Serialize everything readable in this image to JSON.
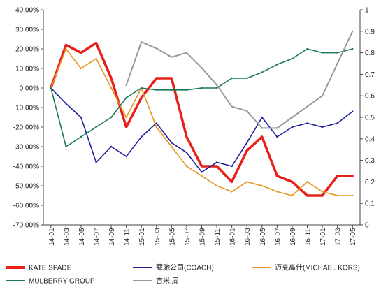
{
  "chart_data": {
    "type": "line",
    "x": [
      "14-01",
      "14-03",
      "14-05",
      "14-07",
      "14-09",
      "14-11",
      "15-01",
      "15-03",
      "15-05",
      "15-07",
      "15-09",
      "15-11",
      "16-01",
      "16-03",
      "16-05",
      "16-07",
      "16-09",
      "16-11",
      "17-01",
      "17-03",
      "17-05"
    ],
    "y_left_ticks": [
      "40.00%",
      "30.00%",
      "20.00%",
      "10.00%",
      "0.00%",
      "-10.00%",
      "-20.00%",
      "-30.00%",
      "-40.00%",
      "-50.00%",
      "-60.00%",
      "-70.00%"
    ],
    "y_right_ticks": [
      "1",
      "0.9",
      "0.8",
      "0.7",
      "0.6",
      "0.5",
      "0.4",
      "0.3",
      "0.2",
      "0.1",
      "0"
    ],
    "ylim_left": [
      -70,
      40
    ],
    "ylim_right": [
      0,
      1
    ],
    "grid": false,
    "legend_position": "bottom",
    "series": [
      {
        "name": "KATE SPADE",
        "axis": "left",
        "color": "#e8201a",
        "values": [
          0,
          22,
          18,
          23,
          5,
          -20,
          -5,
          5,
          5,
          -25,
          -40,
          -40,
          -48,
          -32,
          -25,
          -45,
          -48,
          -55,
          -55,
          -45,
          -45
        ]
      },
      {
        "name": "蔻驰公司(COACH)",
        "axis": "left",
        "color": "#1f1f9a",
        "values": [
          0,
          -8,
          -15,
          -38,
          -30,
          -35,
          -25,
          -18,
          -28,
          -33,
          -43,
          -38,
          -40,
          -28,
          -15,
          -25,
          -20,
          -18,
          -20,
          -18,
          -12
        ]
      },
      {
        "name": "迈克高仕(MICHAEL KORS)",
        "axis": "left",
        "color": "#e8961e",
        "values": [
          0,
          20,
          10,
          15,
          0,
          -15,
          0,
          -20,
          -30,
          -40,
          -45,
          -50,
          -53,
          -48,
          -50,
          -53,
          -55,
          -48,
          -53,
          -55,
          -55
        ]
      },
      {
        "name": "MULBERRY GROUP",
        "axis": "left",
        "color": "#1a7a5a",
        "values": [
          0,
          -30,
          -25,
          -20,
          -15,
          -5,
          0,
          -1,
          -1,
          -1,
          0,
          0,
          5,
          5,
          8,
          12,
          15,
          20,
          18,
          18,
          20
        ]
      },
      {
        "name": "吉米.周",
        "axis": "right",
        "color": "#999999",
        "values": [
          null,
          null,
          null,
          null,
          null,
          0.65,
          0.85,
          0.82,
          0.78,
          0.8,
          0.73,
          0.65,
          0.55,
          0.53,
          0.45,
          0.45,
          0.5,
          0.55,
          0.6,
          0.75,
          0.9
        ]
      }
    ]
  }
}
